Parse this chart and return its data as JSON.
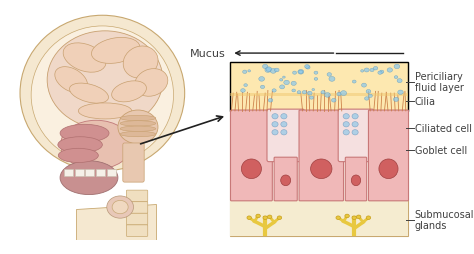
{
  "bg_color": "#ffffff",
  "diagram_bg": "#fdf6ec",
  "cell_color": "#f0b8b8",
  "cell_border": "#c87878",
  "nucleus_color": "#d06060",
  "goblet_cell_color": "#f5d0d0",
  "mucus_layer_color": "#fde8b0",
  "cilia_color": "#c87840",
  "submucosal_color": "#f5e8c0",
  "gland_color": "#e8c840",
  "annotation_color": "#404040",
  "arrow_color": "#202020",
  "droplet_color": "#90c8e8",
  "labels": {
    "mucus": "Mucus",
    "periciliary": "Periciliary\nfluid layer",
    "cilia": "Cilia",
    "ciliated": "Ciliated cell",
    "goblet": "Goblet cell",
    "submucosal": "Submucosal\nglands"
  },
  "font_size_labels": 7,
  "font_size_mucus": 8
}
